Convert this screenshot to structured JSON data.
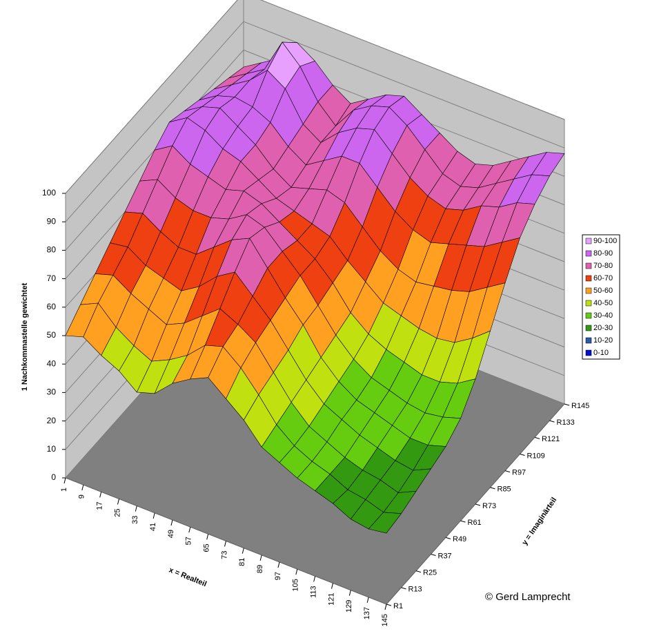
{
  "chart_data": {
    "type": "surface",
    "zlabel": "1 Nachkommastelle gewichtet",
    "xlabel": "x = Realteil",
    "ylabel": "y = Imaginärteil",
    "x": [
      1,
      9,
      17,
      25,
      33,
      41,
      49,
      57,
      65,
      73,
      81,
      89,
      97,
      105,
      113,
      121,
      129,
      137,
      145
    ],
    "xlim": [
      1,
      145
    ],
    "y": [
      "R1",
      "R13",
      "R25",
      "R37",
      "R49",
      "R61",
      "R73",
      "R85",
      "R97",
      "R109",
      "R121",
      "R133",
      "R145"
    ],
    "zlim": [
      0,
      100
    ],
    "zticks": [
      0,
      10,
      20,
      30,
      40,
      50,
      60,
      70,
      80,
      90,
      100
    ],
    "values": [
      [
        50,
        52,
        48,
        45,
        40,
        42,
        48,
        52,
        55,
        50,
        45,
        38,
        35,
        32,
        30,
        28,
        25,
        24,
        25
      ],
      [
        55,
        58,
        52,
        48,
        45,
        48,
        52,
        58,
        60,
        55,
        48,
        40,
        35,
        32,
        30,
        27,
        26,
        24,
        26
      ],
      [
        60,
        62,
        58,
        55,
        52,
        55,
        60,
        65,
        62,
        58,
        50,
        42,
        36,
        33,
        30,
        28,
        27,
        25,
        28
      ],
      [
        65,
        66,
        62,
        60,
        58,
        62,
        68,
        72,
        66,
        60,
        52,
        44,
        38,
        35,
        32,
        30,
        28,
        27,
        30
      ],
      [
        70,
        72,
        68,
        65,
        65,
        70,
        75,
        78,
        70,
        62,
        55,
        46,
        40,
        36,
        34,
        32,
        30,
        30,
        32
      ],
      [
        75,
        78,
        74,
        72,
        72,
        74,
        78,
        76,
        70,
        64,
        56,
        48,
        42,
        38,
        36,
        34,
        33,
        34,
        36
      ],
      [
        80,
        84,
        80,
        78,
        76,
        78,
        76,
        72,
        68,
        64,
        58,
        50,
        45,
        42,
        40,
        38,
        38,
        40,
        44
      ],
      [
        84,
        88,
        86,
        82,
        80,
        76,
        72,
        70,
        68,
        66,
        60,
        55,
        50,
        48,
        46,
        45,
        46,
        50,
        55
      ],
      [
        82,
        86,
        88,
        84,
        80,
        74,
        70,
        72,
        74,
        72,
        66,
        60,
        56,
        54,
        55,
        56,
        58,
        62,
        66
      ],
      [
        80,
        84,
        86,
        85,
        82,
        76,
        72,
        76,
        80,
        80,
        74,
        68,
        64,
        62,
        64,
        66,
        68,
        72,
        76
      ],
      [
        78,
        82,
        86,
        92,
        88,
        78,
        74,
        80,
        84,
        86,
        80,
        74,
        70,
        68,
        70,
        74,
        76,
        80,
        82
      ],
      [
        76,
        80,
        84,
        96,
        90,
        80,
        74,
        82,
        86,
        88,
        84,
        78,
        72,
        70,
        72,
        76,
        80,
        84,
        86
      ],
      [
        74,
        78,
        82,
        90,
        86,
        80,
        76,
        80,
        84,
        86,
        82,
        78,
        74,
        72,
        74,
        78,
        82,
        86,
        88
      ]
    ],
    "legend": [
      {
        "label": "90-100",
        "color": "#e8a0ff"
      },
      {
        "label": "80-90",
        "color": "#cc66ee"
      },
      {
        "label": "70-80",
        "color": "#e060b0"
      },
      {
        "label": "60-70",
        "color": "#ee4010"
      },
      {
        "label": "50-60",
        "color": "#ffa020"
      },
      {
        "label": "40-50",
        "color": "#c0e010"
      },
      {
        "label": "30-40",
        "color": "#66cc10"
      },
      {
        "label": "20-30",
        "color": "#339910"
      },
      {
        "label": "10-20",
        "color": "#2a5aa8"
      },
      {
        "label": "0-10",
        "color": "#0010cc"
      }
    ],
    "copyright": "© Gerd Lamprecht"
  }
}
